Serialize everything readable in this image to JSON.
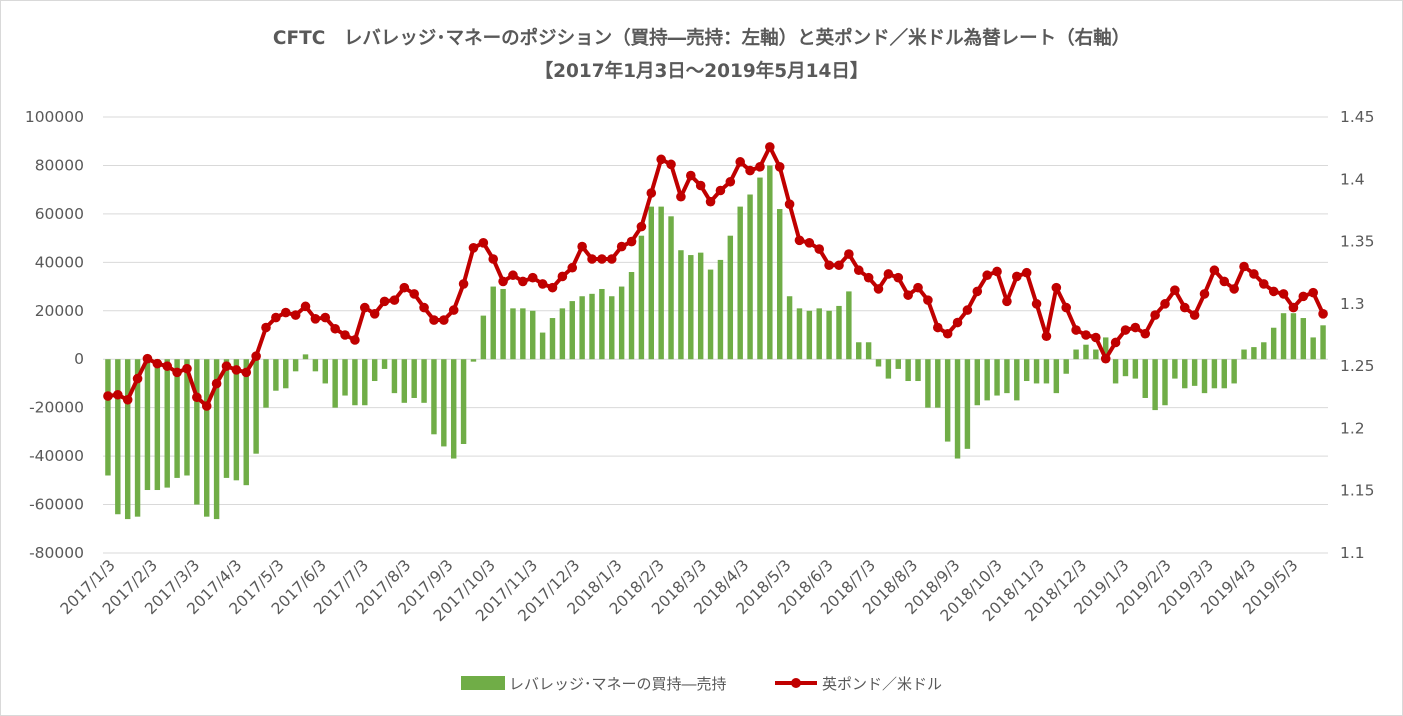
{
  "chart_data": {
    "type": "bar+line",
    "title": "CFTC　レバレッジ･マネーのポジション（買持―売持：左軸）と英ポンド／米ドル為替レート（右軸）",
    "subtitle": "【2017年1月3日～2019年5月14日】",
    "y_left": {
      "min": -80000,
      "max": 100000,
      "step": 20000,
      "ticks": [
        "100000",
        "80000",
        "60000",
        "40000",
        "20000",
        "0",
        "-20000",
        "-40000",
        "-60000",
        "-80000"
      ]
    },
    "y_right": {
      "min": 1.1,
      "max": 1.45,
      "step": 0.05,
      "ticks": [
        "1.45",
        "1.4",
        "1.35",
        "1.3",
        "1.25",
        "1.2",
        "1.15",
        "1.1"
      ]
    },
    "x_labels": [
      "2017/1/3",
      "2017/2/3",
      "2017/3/3",
      "2017/4/3",
      "2017/5/3",
      "2017/6/3",
      "2017/7/3",
      "2017/8/3",
      "2017/9/3",
      "2017/10/3",
      "2017/11/3",
      "2017/12/3",
      "2018/1/3",
      "2018/2/3",
      "2018/3/3",
      "2018/4/3",
      "2018/5/3",
      "2018/6/3",
      "2018/7/3",
      "2018/8/3",
      "2018/9/3",
      "2018/10/3",
      "2018/11/3",
      "2018/12/3",
      "2019/1/3",
      "2019/2/3",
      "2019/3/3",
      "2019/4/3",
      "2019/5/3"
    ],
    "series": [
      {
        "name": "レバレッジ･マネーの買持―売持",
        "type": "bar",
        "color": "#70ad47",
        "values": [
          -48000,
          -64000,
          -66000,
          -65000,
          -54000,
          -54000,
          -53000,
          -49000,
          -48000,
          -60000,
          -65000,
          -66000,
          -49000,
          -50000,
          -52000,
          -39000,
          -20000,
          -13000,
          -12000,
          -5000,
          2000,
          -5000,
          -10000,
          -20000,
          -15000,
          -19000,
          -19000,
          -9000,
          -4000,
          -14000,
          -18000,
          -16000,
          -18000,
          -31000,
          -36000,
          -41000,
          -35000,
          -1000,
          18000,
          30000,
          29000,
          21000,
          21000,
          20000,
          11000,
          17000,
          21000,
          24000,
          26000,
          27000,
          29000,
          26000,
          30000,
          36000,
          51000,
          63000,
          63000,
          59000,
          45000,
          43000,
          44000,
          37000,
          41000,
          51000,
          63000,
          68000,
          75000,
          80000,
          62000,
          26000,
          21000,
          20000,
          21000,
          20000,
          22000,
          28000,
          7000,
          7000,
          -3000,
          -8000,
          -4000,
          -9000,
          -9000,
          -20000,
          -20000,
          -34000,
          -41000,
          -37000,
          -19000,
          -17000,
          -15000,
          -14000,
          -17000,
          -9000,
          -10000,
          -10000,
          -14000,
          -6000,
          4000,
          6000,
          4000,
          9000,
          -10000,
          -7000,
          -8000,
          -16000,
          -21000,
          -19000,
          -8000,
          -12000,
          -11000,
          -14000,
          -12000,
          -12000,
          -10000,
          4000,
          5000,
          7000,
          13000,
          19000,
          19000,
          17000,
          9000,
          14000
        ]
      },
      {
        "name": "英ポンド／米ドル",
        "type": "line",
        "color": "#c00000",
        "values": [
          1.226,
          1.227,
          1.223,
          1.24,
          1.256,
          1.252,
          1.25,
          1.245,
          1.248,
          1.225,
          1.218,
          1.236,
          1.25,
          1.247,
          1.245,
          1.258,
          1.281,
          1.289,
          1.293,
          1.291,
          1.298,
          1.288,
          1.289,
          1.28,
          1.275,
          1.271,
          1.297,
          1.292,
          1.302,
          1.303,
          1.313,
          1.308,
          1.297,
          1.287,
          1.287,
          1.295,
          1.316,
          1.345,
          1.349,
          1.336,
          1.318,
          1.323,
          1.318,
          1.321,
          1.316,
          1.313,
          1.322,
          1.329,
          1.346,
          1.336,
          1.336,
          1.336,
          1.346,
          1.35,
          1.362,
          1.389,
          1.416,
          1.412,
          1.386,
          1.403,
          1.395,
          1.382,
          1.391,
          1.398,
          1.414,
          1.407,
          1.41,
          1.426,
          1.41,
          1.38,
          1.351,
          1.349,
          1.344,
          1.331,
          1.331,
          1.34,
          1.327,
          1.321,
          1.312,
          1.324,
          1.321,
          1.307,
          1.313,
          1.303,
          1.281,
          1.276,
          1.285,
          1.295,
          1.31,
          1.323,
          1.326,
          1.302,
          1.322,
          1.325,
          1.3,
          1.274,
          1.313,
          1.297,
          1.279,
          1.275,
          1.273,
          1.256,
          1.269,
          1.279,
          1.281,
          1.276,
          1.291,
          1.3,
          1.311,
          1.297,
          1.291,
          1.308,
          1.327,
          1.318,
          1.312,
          1.33,
          1.324,
          1.316,
          1.31,
          1.308,
          1.297,
          1.306,
          1.309,
          1.292
        ]
      }
    ],
    "legend_position": "bottom",
    "grid": "horizontal"
  }
}
